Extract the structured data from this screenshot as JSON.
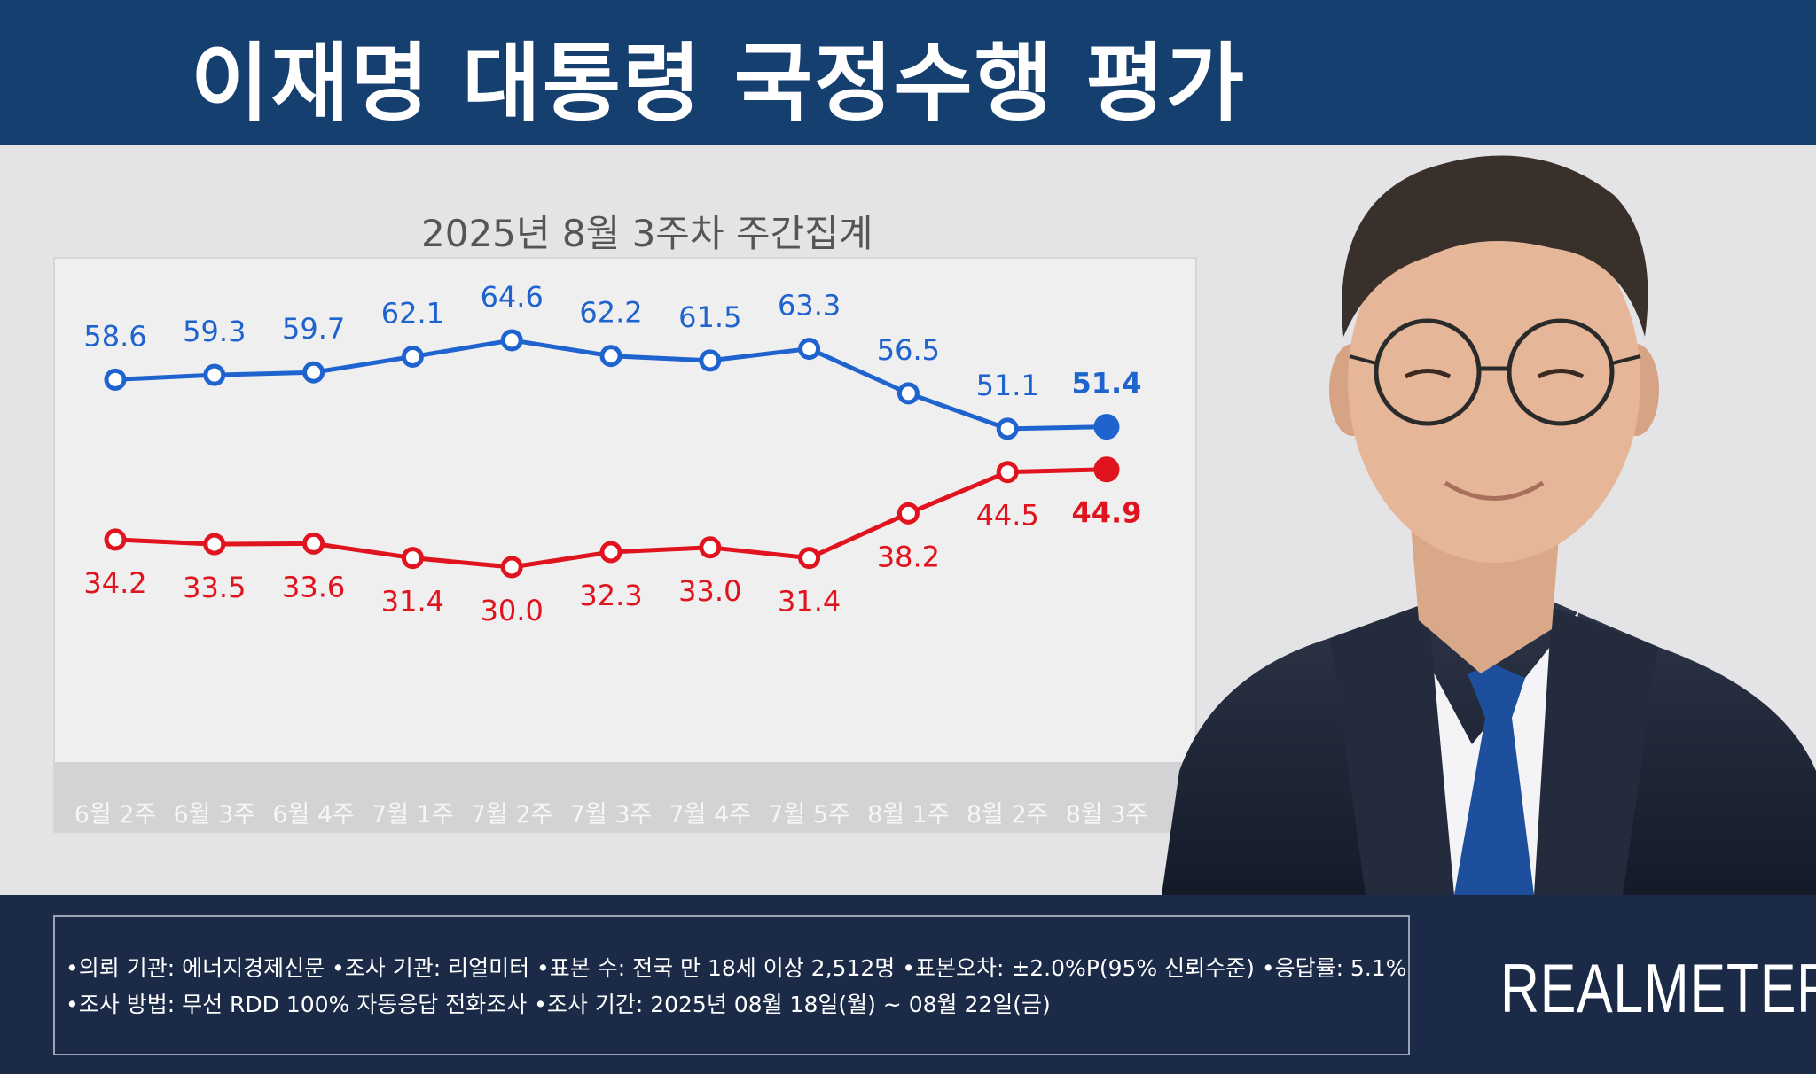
{
  "header": {
    "title": "이재명 대통령 국정수행 평가"
  },
  "chart_data": {
    "type": "line",
    "title": "2025년 8월 3주차 주간집계",
    "categories": [
      "6월 2주",
      "6월 3주",
      "6월 4주",
      "7월 1주",
      "7월 2주",
      "7월 3주",
      "7월 4주",
      "7월 5주",
      "8월 1주",
      "8월 2주",
      "8월 3주"
    ],
    "series": [
      {
        "values": [
          58.6,
          59.3,
          59.7,
          62.1,
          64.6,
          62.2,
          61.5,
          63.3,
          56.5,
          51.1,
          51.4
        ],
        "color": "#1f63cf"
      },
      {
        "values": [
          34.2,
          33.5,
          33.6,
          31.4,
          30.0,
          32.3,
          33.0,
          31.4,
          38.2,
          44.5,
          44.9
        ],
        "color": "#e0141e"
      }
    ],
    "labels": [
      [
        "58.6",
        "59.3",
        "59.7",
        "62.1",
        "64.6",
        "62.2",
        "61.5",
        "63.3",
        "56.5",
        "51.1",
        "51.4"
      ],
      [
        "34.2",
        "33.5",
        "33.6",
        "31.4",
        "30.0",
        "32.3",
        "33.0",
        "31.4",
        "38.2",
        "44.5",
        "44.9"
      ]
    ],
    "grid": false,
    "legend": "none"
  },
  "notes": {
    "line1": "•의뢰 기관: 에너지경제신문 •조사 기관: 리얼미터 •표본 수: 전국 만 18세 이상 2,512명 •표본오차: ±2.0%P(95% 신뢰수준) •응답률: 5.1%",
    "line2": "•조사 방법: 무선 RDD 100% 자동응답 전화조사 •조사 기간: 2025년 08월 18일(월) ~ 08월 22일(금)"
  },
  "brand": "REALMETER"
}
